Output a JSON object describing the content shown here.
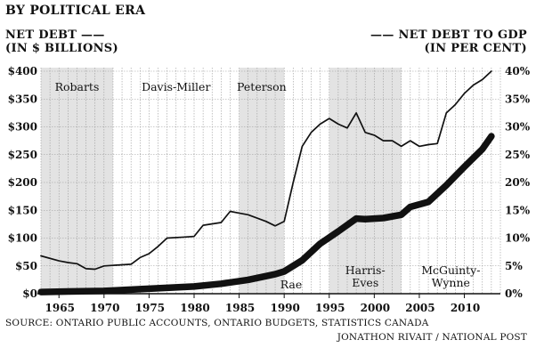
{
  "title": "BY POLITICAL ERA",
  "legend_left": [
    "NET DEBT ——",
    "(IN $ BILLIONS)"
  ],
  "legend_right": [
    "—— NET DEBT TO GDP",
    "(IN PER CENT)"
  ],
  "source": "SOURCE: ONTARIO PUBLIC ACCOUNTS, ONTARIO BUDGETS, STATISTICS CANADA",
  "credit": "JONATHON RIVAIT / NATIONAL POST",
  "colors": {
    "ink": "#111111",
    "shade": "#e3e3e3",
    "grid": "#9a9a9a"
  },
  "chart_data": {
    "type": "line",
    "title": "BY POLITICAL ERA",
    "xlim": [
      1963,
      2014
    ],
    "x_ticks": [
      1965,
      1970,
      1975,
      1980,
      1985,
      1990,
      1995,
      2000,
      2005,
      2010
    ],
    "y_left": {
      "label": "NET DEBT (IN $ BILLIONS)",
      "lim": [
        0,
        400
      ],
      "ticks": [
        0,
        50,
        100,
        150,
        200,
        250,
        300,
        350,
        400
      ],
      "tick_labels": [
        "$0",
        "$50",
        "$100",
        "$150",
        "$200",
        "$250",
        "$300",
        "$350",
        "$400"
      ]
    },
    "y_right": {
      "label": "NET DEBT TO GDP (IN PER CENT)",
      "lim": [
        0,
        40
      ],
      "ticks": [
        0,
        5,
        10,
        15,
        20,
        25,
        30,
        35,
        40
      ],
      "tick_labels": [
        "0%",
        "5%",
        "10%",
        "15%",
        "20%",
        "25%",
        "30%",
        "35%",
        "40%"
      ]
    },
    "grid": true,
    "eras": [
      {
        "name": "Robarts",
        "start": 1963,
        "end": 1971,
        "shaded": true,
        "label_pos": "top"
      },
      {
        "name": "Davis-Miller",
        "start": 1971,
        "end": 1985,
        "shaded": false,
        "label_pos": "top"
      },
      {
        "name": "Peterson",
        "start": 1985,
        "end": 1990,
        "shaded": true,
        "label_pos": "top"
      },
      {
        "name": "Rae",
        "start": 1990,
        "end": 1995,
        "shaded": false,
        "label_pos": "bottom"
      },
      {
        "name": "Harris-\nEves",
        "start": 1995,
        "end": 2003,
        "shaded": true,
        "label_pos": "bottom"
      },
      {
        "name": "McGuinty-\nWynne",
        "start": 2003,
        "end": 2014,
        "shaded": false,
        "label_pos": "bottom"
      }
    ],
    "series": [
      {
        "name": "NET DEBT",
        "axis": "left",
        "style": "thick",
        "x": [
          1963,
          1966,
          1970,
          1975,
          1980,
          1983,
          1986,
          1989,
          1990,
          1992,
          1994,
          1996,
          1998,
          1999,
          2001,
          2003,
          2004,
          2006,
          2008,
          2010,
          2012,
          2013
        ],
        "values": [
          3,
          4,
          5,
          9,
          13,
          18,
          25,
          35,
          40,
          60,
          90,
          112,
          135,
          134,
          136,
          142,
          156,
          165,
          195,
          228,
          260,
          283
        ]
      },
      {
        "name": "NET DEBT TO GDP",
        "axis": "right",
        "style": "thin",
        "x": [
          1963,
          1965,
          1966,
          1967,
          1968,
          1969,
          1970,
          1972,
          1973,
          1974,
          1975,
          1976,
          1977,
          1979,
          1980,
          1981,
          1983,
          1984,
          1985,
          1986,
          1988,
          1989,
          1990,
          1991,
          1992,
          1993,
          1994,
          1995,
          1996,
          1997,
          1998,
          1999,
          2000,
          2001,
          2002,
          2003,
          2004,
          2005,
          2006,
          2007,
          2008,
          2009,
          2010,
          2011,
          2012,
          2013
        ],
        "values": [
          6.8,
          5.9,
          5.6,
          5.4,
          4.5,
          4.4,
          5.0,
          5.2,
          5.3,
          6.5,
          7.2,
          8.5,
          10.0,
          10.2,
          10.3,
          12.3,
          12.8,
          14.8,
          14.5,
          14.2,
          13.0,
          12.2,
          13.0,
          20.0,
          26.5,
          29.0,
          30.5,
          31.5,
          30.5,
          29.8,
          32.5,
          29.0,
          28.5,
          27.5,
          27.5,
          26.5,
          27.5,
          26.5,
          26.8,
          27.0,
          32.5,
          34.0,
          36.0,
          37.5,
          38.5,
          40.0
        ]
      }
    ]
  }
}
